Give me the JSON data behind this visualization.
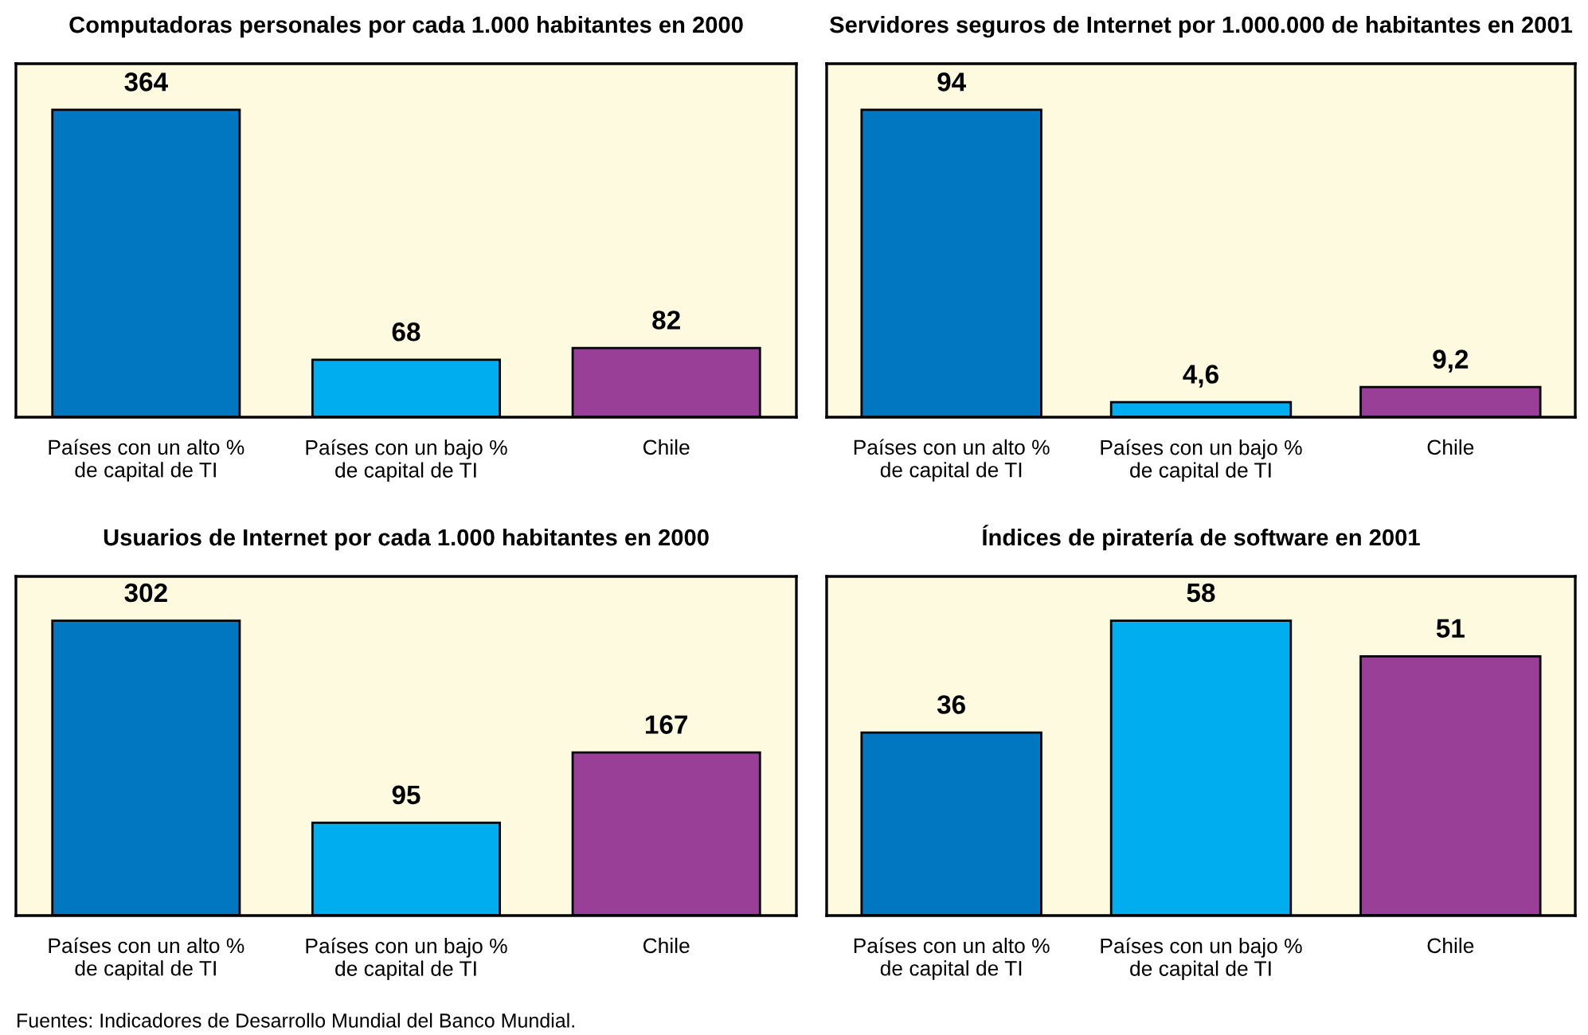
{
  "chart_data": [
    {
      "type": "bar",
      "title": "Computadoras personales por cada 1.000 habitantes en 2000",
      "categories": [
        "Países con un alto %\nde capital de TI",
        "Países con un bajo %\nde capital de TI",
        "Chile"
      ],
      "values": [
        364,
        68,
        82
      ],
      "colors": [
        "#0077c0",
        "#00adef",
        "#993f98"
      ],
      "data_labels": true,
      "tick_labels": "x",
      "grid": false,
      "legend": false
    },
    {
      "type": "bar",
      "title": "Servidores seguros de Internet por 1.000.000 de habitantes en 2001",
      "categories": [
        "Países con un alto %\nde capital de TI",
        "Países con un bajo %\nde capital de TI",
        "Chile"
      ],
      "values": [
        94,
        4.6,
        9.2
      ],
      "value_labels": [
        "94",
        "4,6",
        "9,2"
      ],
      "colors": [
        "#0077c0",
        "#00adef",
        "#993f98"
      ],
      "tick_labels": "x",
      "grid": false,
      "legend": false
    },
    {
      "type": "bar",
      "title": "Usuarios de Internet por cada 1.000 habitantes en 2000",
      "categories": [
        "Países con un alto %\nde capital de TI",
        "Países con un bajo %\nde capital de TI",
        "Chile"
      ],
      "values": [
        302,
        95,
        167
      ],
      "colors": [
        "#0077c0",
        "#00adef",
        "#993f98"
      ],
      "data_labels": true,
      "tick_labels": "x",
      "grid": false,
      "legend": false
    },
    {
      "type": "bar",
      "title": "Índices de piratería de software en 2001",
      "categories": [
        "Países con un alto %\nde capital de TI",
        "Países con un bajo %\nde capital de TI",
        "Chile"
      ],
      "values": [
        36,
        58,
        51
      ],
      "colors": [
        "#0077c0",
        "#00adef",
        "#993f98"
      ],
      "data_labels": true,
      "tick_labels": "x",
      "grid": false,
      "legend": false,
      "annotations": [
        "Fuentes: Indicadores de Desarrollo Mundial del Banco Mundial."
      ]
    }
  ]
}
